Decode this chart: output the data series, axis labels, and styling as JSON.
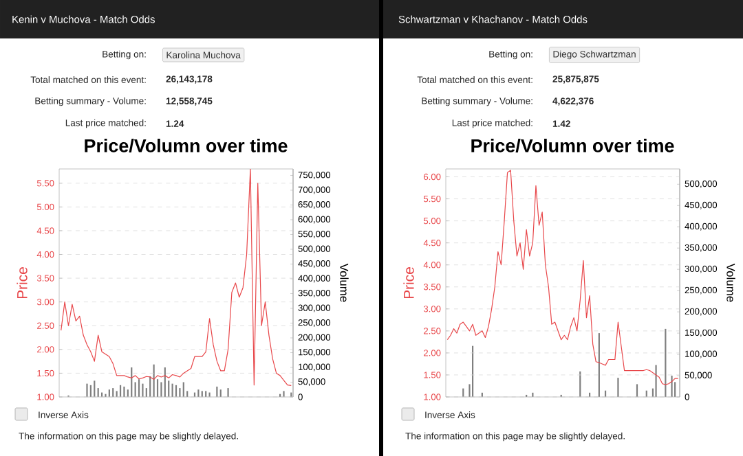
{
  "chart_data": [
    {
      "type": "line",
      "title": "Kenin v Muchova - Match Odds",
      "subtitle": "Price/Volumn over time",
      "ylabel": "Price",
      "y2label": "Volume",
      "annotations": [
        "Betting on:",
        "Karolina Muchova",
        "Total matched on this event:",
        "26,143,178",
        "Betting summary - Volume:",
        "12,558,745",
        "Last price matched:",
        "1.24",
        "Inverse Axis",
        "The information on this page may be slightly delayed."
      ],
      "categories": [
        null,
        null,
        null,
        null,
        null,
        null,
        null,
        null,
        null,
        null,
        null,
        null,
        null,
        null,
        null,
        null,
        null,
        null,
        null,
        null,
        null,
        null,
        null,
        null,
        null,
        null,
        null,
        null,
        null,
        null,
        null,
        null,
        null,
        null,
        null,
        null,
        null,
        null,
        null,
        null,
        null,
        null,
        null,
        null,
        null,
        null,
        null,
        null,
        null,
        null,
        null,
        null,
        null,
        null,
        null,
        null,
        null,
        null,
        null,
        null,
        null,
        null,
        null
      ],
      "series": [
        {
          "color": "#e8474a",
          "values": [
            2.4,
            3.0,
            2.5,
            2.95,
            2.6,
            2.7,
            2.3,
            2.1,
            1.95,
            1.75,
            2.3,
            1.95,
            1.9,
            1.85,
            1.7,
            1.45,
            1.45,
            1.45,
            1.42,
            1.4,
            1.45,
            1.38,
            1.4,
            1.43,
            1.42,
            1.37,
            1.45,
            1.42,
            1.45,
            1.4,
            1.47,
            1.45,
            1.42,
            1.5,
            1.55,
            1.6,
            1.85,
            1.85,
            1.85,
            1.95,
            2.65,
            2.1,
            1.75,
            1.55,
            1.55,
            2.0,
            3.2,
            3.4,
            3.1,
            3.3,
            4.0,
            5.8,
            1.25,
            5.5,
            2.5,
            3.0,
            2.3,
            1.8,
            1.5,
            1.45,
            1.35,
            1.25,
            1.24
          ]
        },
        {
          "type": "bar",
          "axis": "y2",
          "color": "#7f7f7f",
          "values": [
            null,
            null,
            5000,
            null,
            null,
            null,
            null,
            45000,
            40000,
            55000,
            30000,
            15000,
            10000,
            25000,
            30000,
            20000,
            40000,
            35000,
            25000,
            100000,
            50000,
            60000,
            45000,
            30000,
            70000,
            110000,
            60000,
            50000,
            100000,
            55000,
            45000,
            40000,
            30000,
            50000,
            20000,
            null,
            15000,
            25000,
            20000,
            20000,
            15000,
            null,
            35000,
            25000,
            null,
            30000,
            null,
            null,
            null,
            null,
            null,
            null,
            null,
            null,
            null,
            null,
            null,
            null,
            null,
            10000,
            20000,
            null,
            15000
          ]
        }
      ],
      "ylim": [
        1,
        5.8
      ],
      "yticks": [
        {
          "value": 1,
          "label": "1.00"
        },
        {
          "value": 1.5,
          "label": "1.50"
        },
        {
          "value": 2,
          "label": "2.00"
        },
        {
          "value": 2.5,
          "label": "2.50"
        },
        {
          "value": 3,
          "label": "3.00"
        },
        {
          "value": 3.5,
          "label": "3.50"
        },
        {
          "value": 4,
          "label": "4.00"
        },
        {
          "value": 4.5,
          "label": "4.50"
        },
        {
          "value": 5,
          "label": "5.00"
        },
        {
          "value": 5.5,
          "label": "5.50"
        }
      ],
      "y2lim": [
        0,
        772000
      ],
      "y2ticks": [
        0,
        {
          "value": 50000,
          "label": "50,000"
        },
        {
          "value": 100000,
          "label": "100,000"
        },
        {
          "value": 150000,
          "label": "150,000"
        },
        {
          "value": 200000,
          "label": "200,000"
        },
        {
          "value": 250000,
          "label": "250,000"
        },
        {
          "value": 300000,
          "label": "300,000"
        },
        {
          "value": 350000,
          "label": "350,000"
        },
        {
          "value": 400000,
          "label": "400,000"
        },
        {
          "value": 450000,
          "label": "450,000"
        },
        {
          "value": 500000,
          "label": "500,000"
        },
        {
          "value": 550000,
          "label": "550,000"
        },
        {
          "value": 600000,
          "label": "600,000"
        },
        {
          "value": 650000,
          "label": "650,000"
        },
        {
          "value": 700000,
          "label": "700,000"
        },
        {
          "value": 750000,
          "label": "750,000"
        }
      ],
      "grid": "y"
    },
    {
      "type": "line",
      "title": "Schwartzman v Khachanov - Match Odds",
      "subtitle": "Price/Volumn over time",
      "ylabel": "Price",
      "y2label": "Volume",
      "annotations": [
        "Betting on:",
        "Diego Schwartzman",
        "Total matched on this event:",
        "25,875,875",
        "Betting summary - Volume:",
        "4,622,376",
        "Last price matched:",
        "1.42",
        "Inverse Axis",
        "The information on this page may be slightly delayed."
      ],
      "categories": [
        null,
        null,
        null,
        null,
        null,
        null,
        null,
        null,
        null,
        null,
        null,
        null,
        null,
        null,
        null,
        null,
        null,
        null,
        null,
        null,
        null,
        null,
        null,
        null,
        null,
        null,
        null,
        null,
        null,
        null,
        null,
        null,
        null,
        null,
        null,
        null,
        null,
        null,
        null,
        null,
        null,
        null,
        null,
        null,
        null,
        null,
        null,
        null,
        null,
        null,
        null,
        null,
        null,
        null,
        null,
        null,
        null,
        null,
        null,
        null,
        null,
        null,
        null,
        null,
        null,
        null,
        null,
        null,
        null,
        null,
        null,
        null,
        null,
        null
      ],
      "series": [
        {
          "color": "#e8474a",
          "values": [
            2.3,
            2.4,
            2.55,
            2.45,
            2.65,
            2.7,
            2.6,
            2.5,
            2.65,
            2.4,
            2.45,
            2.5,
            2.35,
            2.6,
            3.0,
            3.5,
            4.3,
            4.0,
            5.0,
            6.1,
            6.15,
            5.0,
            4.2,
            4.5,
            3.9,
            4.8,
            4.2,
            4.5,
            5.8,
            4.9,
            5.2,
            4.0,
            3.5,
            2.65,
            2.7,
            2.5,
            2.3,
            2.4,
            2.3,
            2.6,
            2.8,
            2.5,
            3.2,
            4.1,
            2.8,
            3.3,
            2.2,
            1.8,
            1.78,
            1.75,
            1.72,
            1.85,
            1.85,
            1.85,
            2.7,
            2.15,
            1.6,
            1.6,
            1.6,
            1.6,
            1.6,
            1.6,
            1.6,
            1.62,
            1.6,
            1.55,
            1.5,
            1.45,
            1.3,
            1.28,
            1.3,
            1.35,
            1.42,
            1.42
          ]
        },
        {
          "type": "bar",
          "axis": "y2",
          "color": "#7f7f7f",
          "values": [
            null,
            null,
            null,
            null,
            null,
            20000,
            null,
            30000,
            120000,
            null,
            null,
            10000,
            null,
            null,
            null,
            null,
            null,
            null,
            null,
            null,
            null,
            null,
            null,
            null,
            null,
            5000,
            null,
            10000,
            null,
            null,
            null,
            null,
            null,
            null,
            null,
            null,
            5000,
            null,
            null,
            null,
            null,
            null,
            60000,
            null,
            null,
            10000,
            null,
            null,
            150000,
            null,
            15000,
            null,
            null,
            null,
            45000,
            null,
            null,
            null,
            null,
            null,
            30000,
            null,
            null,
            15000,
            null,
            20000,
            75000,
            null,
            null,
            160000,
            null,
            50000,
            35000,
            null
          ]
        }
      ],
      "ylim": [
        1,
        6.18
      ],
      "yticks": [
        {
          "value": 1,
          "label": "1.00"
        },
        {
          "value": 1.5,
          "label": "1.50"
        },
        {
          "value": 2,
          "label": "2.00"
        },
        {
          "value": 2.5,
          "label": "2.50"
        },
        {
          "value": 3,
          "label": "3.00"
        },
        {
          "value": 3.5,
          "label": "3.50"
        },
        {
          "value": 4,
          "label": "4.00"
        },
        {
          "value": 4.5,
          "label": "4.50"
        },
        {
          "value": 5,
          "label": "5.00"
        },
        {
          "value": 5.5,
          "label": "5.50"
        },
        {
          "value": 6,
          "label": "6.00"
        }
      ],
      "y2lim": [
        0,
        536000
      ],
      "y2ticks": [
        0,
        {
          "value": 50000,
          "label": "50,000"
        },
        {
          "value": 100000,
          "label": "100,000"
        },
        {
          "value": 150000,
          "label": "150,000"
        },
        {
          "value": 200000,
          "label": "200,000"
        },
        {
          "value": 250000,
          "label": "250,000"
        },
        {
          "value": 300000,
          "label": "300,000"
        },
        {
          "value": 350000,
          "label": "350,000"
        },
        {
          "value": 400000,
          "label": "400,000"
        },
        {
          "value": 450000,
          "label": "450,000"
        },
        {
          "value": 500000,
          "label": "500,000"
        }
      ],
      "grid": "y"
    }
  ]
}
